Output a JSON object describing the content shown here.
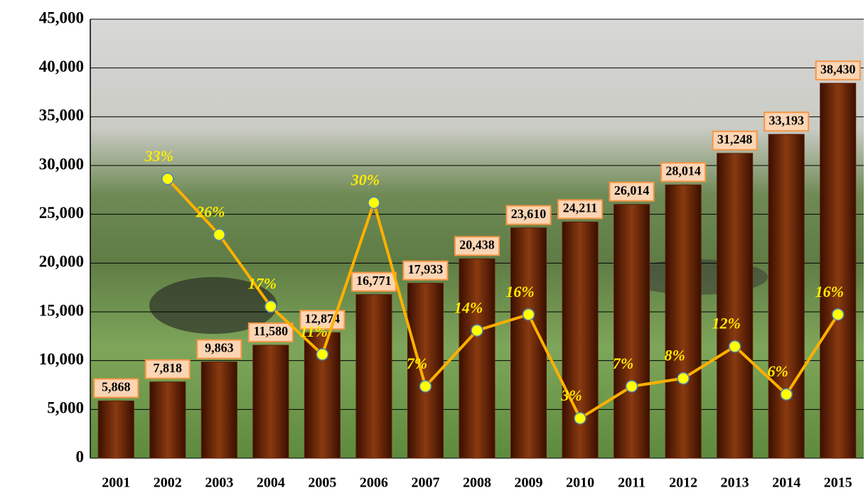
{
  "chart_data": {
    "type": "bar-line",
    "categories": [
      "2001",
      "2002",
      "2003",
      "2004",
      "2005",
      "2006",
      "2007",
      "2008",
      "2009",
      "2010",
      "2011",
      "2012",
      "2013",
      "2014",
      "2015"
    ],
    "series": [
      {
        "type": "bar",
        "color": "#5c1d04",
        "values": [
          5868,
          7818,
          9863,
          11580,
          12874,
          16771,
          17933,
          20438,
          23610,
          24211,
          26014,
          28014,
          31248,
          33193,
          38430
        ],
        "value_labels": [
          "5,868",
          "7,818",
          "9,863",
          "11,580",
          "12,874",
          "16,771",
          "17,933",
          "20,438",
          "23,610",
          "24,211",
          "26,014",
          "28,014",
          "31,248",
          "33,193",
          "38,430"
        ]
      },
      {
        "type": "line",
        "axis": "y2",
        "color": "#ffb000",
        "values": [
          null,
          33,
          26,
          17,
          11,
          30,
          7,
          14,
          16,
          3,
          7,
          8,
          12,
          6,
          16
        ],
        "value_labels": [
          null,
          "33%",
          "26%",
          "17%",
          "11%",
          "30%",
          "7%",
          "14%",
          "16%",
          "3%",
          "7%",
          "8%",
          "12%",
          "6%",
          "16%"
        ]
      }
    ],
    "ylim": [
      0,
      45000
    ],
    "yticks": [
      0,
      {
        "value": 5000,
        "label": "5,000"
      },
      {
        "value": 10000,
        "label": "10,000"
      },
      {
        "value": 15000,
        "label": "15,000"
      },
      {
        "value": 20000,
        "label": "20,000"
      },
      {
        "value": 25000,
        "label": "25,000"
      },
      {
        "value": 30000,
        "label": "30,000"
      },
      {
        "value": 35000,
        "label": "35,000"
      },
      {
        "value": 40000,
        "label": "40,000"
      },
      {
        "value": 45000,
        "label": "45,000"
      }
    ],
    "y2lim": [
      -2,
      53
    ],
    "grid": true
  }
}
